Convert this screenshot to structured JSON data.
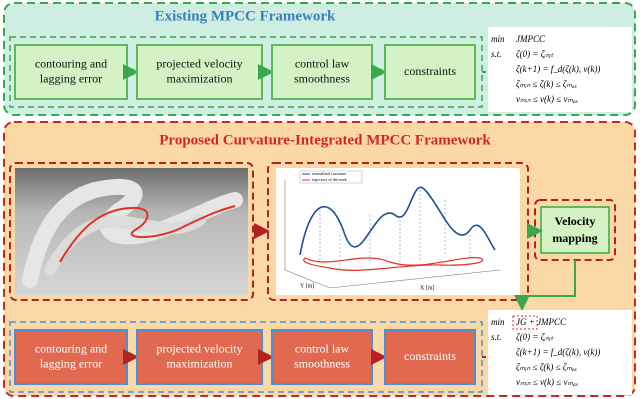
{
  "top": {
    "title": "Existing MPCC Framework",
    "boxes": [
      {
        "lines": [
          "contouring and",
          "lagging error"
        ]
      },
      {
        "lines": [
          "projected velocity",
          "maximization"
        ]
      },
      {
        "lines": [
          "control law",
          "smoothness"
        ]
      },
      {
        "lines": [
          "constraints"
        ]
      }
    ],
    "formula": [
      [
        "min",
        "JMPCC"
      ],
      [
        "s.t.",
        "ζ(0) = ζᵢₙᵢₜ"
      ],
      [
        "",
        "ζ(k+1) = f_d(ζ(k), v(k))"
      ],
      [
        "",
        "ζₘᵢₙ ≤ ζ(k) ≤ ζₘₐₓ"
      ],
      [
        "",
        "vₘᵢₙ ≤ v(k) ≤ vₘₐₓ"
      ]
    ]
  },
  "bottom": {
    "title": "Proposed Curvature-Integrated MPCC Framework",
    "plot": {
      "legend": [
        "normalized curvature",
        "trajectory of the track"
      ],
      "y_label": "Y [m]",
      "x_label": "X [m]"
    },
    "mapping": [
      "Velocity",
      "mapping"
    ],
    "boxes": [
      {
        "lines": [
          "contouring and",
          "lagging error"
        ]
      },
      {
        "lines": [
          "projected velocity",
          "maximization"
        ]
      },
      {
        "lines": [
          "control law",
          "smoothness"
        ]
      },
      {
        "lines": [
          "constraints"
        ]
      }
    ],
    "formula": [
      [
        "min",
        "JG + JMPCC"
      ],
      [
        "s.t.",
        "ζ(0) = ζᵢₙᵢₜ"
      ],
      [
        "",
        "ζ(k+1) = f_d(ζ(k), v(k))"
      ],
      [
        "",
        "ζₘᵢₙ ≤ ζ(k) ≤ ζₘₐₓ"
      ],
      [
        "",
        "vₘᵢₙ ≤ v(k) ≤ vₘₐₓ"
      ]
    ]
  }
}
